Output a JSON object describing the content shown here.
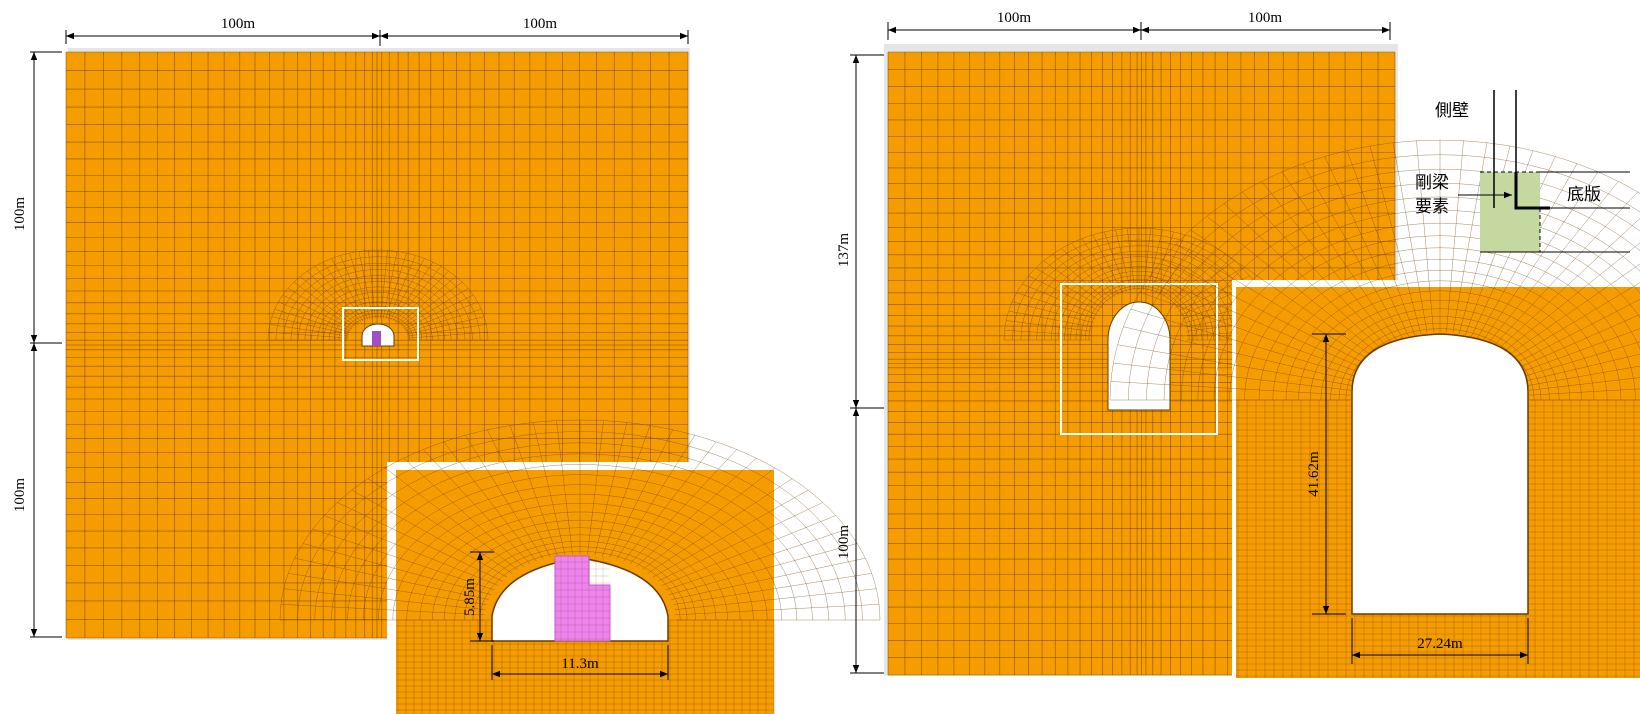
{
  "colors": {
    "soil": "#f59c00",
    "mesh": "#6b3a00",
    "frame": "#d8d8d8",
    "lining": "#ee82ee",
    "rigid_zone": "#c5d8a0"
  },
  "left_figure": {
    "top_dim_left": "100m",
    "top_dim_right": "100m",
    "side_dim_upper": "100m",
    "side_dim_lower": "100m",
    "inset_height_dim": "5.85m",
    "inset_width_dim": "11.3m"
  },
  "right_figure": {
    "top_dim_left": "100m",
    "top_dim_right": "100m",
    "side_dim_upper": "137m",
    "side_dim_lower": "100m",
    "inset_height_dim": "41.62m",
    "inset_width_dim": "27.24m"
  },
  "legend": {
    "side_wall": "側壁",
    "rigid_beam_line1": "剛梁",
    "rigid_beam_line2": "要素",
    "bottom_slab": "底版"
  }
}
